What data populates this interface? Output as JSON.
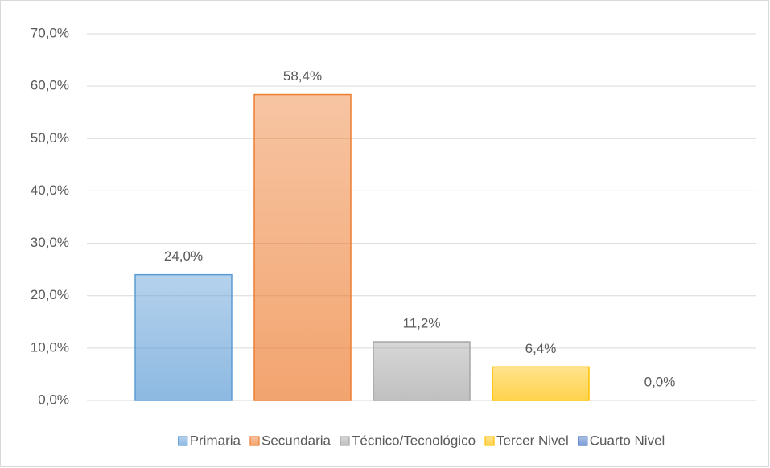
{
  "chart_data": {
    "type": "bar",
    "categories": [
      null
    ],
    "series": [
      {
        "name": "Primaria",
        "color": "#5b9bd5",
        "values": [
          24.0
        ],
        "value_labels": [
          "24,0%"
        ]
      },
      {
        "name": "Secundaria",
        "color": "#ed7d31",
        "values": [
          58.4
        ],
        "value_labels": [
          "58,4%"
        ]
      },
      {
        "name": "Técnico/Tecnológico",
        "color": "#a5a5a5",
        "values": [
          11.2
        ],
        "value_labels": [
          "11,2%"
        ]
      },
      {
        "name": "Tercer Nivel",
        "color": "#ffc000",
        "values": [
          6.4
        ],
        "value_labels": [
          "6,4%"
        ]
      },
      {
        "name": "Cuarto Nivel",
        "color": "#4472c4",
        "values": [
          0.0
        ],
        "value_labels": [
          "0,0%"
        ]
      }
    ],
    "ylim": [
      0,
      70
    ],
    "yticks": [
      {
        "value": 0,
        "label": "0,0%"
      },
      {
        "value": 10,
        "label": "10,0%"
      },
      {
        "value": 20,
        "label": "20,0%"
      },
      {
        "value": 30,
        "label": "30,0%"
      },
      {
        "value": 40,
        "label": "40,0%"
      },
      {
        "value": 50,
        "label": "50,0%"
      },
      {
        "value": 60,
        "label": "60,0%"
      },
      {
        "value": 70,
        "label": "70,0%"
      }
    ],
    "grid": true,
    "legend": "bottom"
  }
}
